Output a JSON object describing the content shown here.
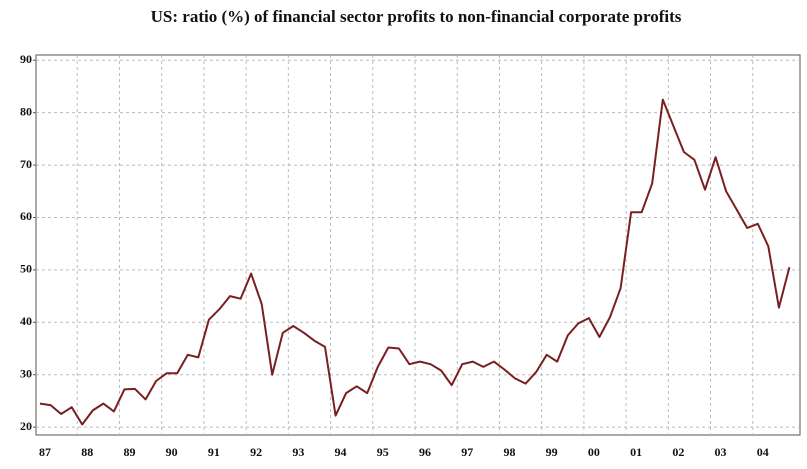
{
  "chart_data": {
    "type": "line",
    "title": "US: ratio (%) of financial sector profits to non-financial corporate profits",
    "categories": [
      "87",
      null,
      null,
      null,
      "88",
      null,
      null,
      null,
      "89",
      null,
      null,
      null,
      "90",
      null,
      null,
      null,
      "91",
      null,
      null,
      null,
      "92",
      null,
      null,
      null,
      "93",
      null,
      null,
      null,
      "94",
      null,
      null,
      null,
      "95",
      null,
      null,
      null,
      "96",
      null,
      null,
      null,
      "97",
      null,
      null,
      null,
      "98",
      null,
      null,
      null,
      "99",
      null,
      null,
      null,
      "00",
      null,
      null,
      null,
      "01",
      null,
      null,
      null,
      "02",
      null,
      null,
      null,
      "03",
      null,
      null,
      null,
      "04",
      null,
      null,
      null
    ],
    "series": [
      {
        "color": "#7a1f1f",
        "values": [
          24.5,
          24.2,
          22.5,
          23.8,
          20.5,
          23.2,
          24.5,
          23.0,
          27.2,
          27.3,
          25.3,
          28.8,
          30.3,
          30.3,
          33.8,
          33.3,
          40.5,
          42.5,
          45.0,
          44.5,
          49.3,
          43.5,
          30.0,
          38.0,
          39.3,
          38.0,
          36.5,
          35.3,
          22.2,
          26.5,
          27.8,
          26.5,
          31.5,
          35.2,
          35.0,
          32.0,
          32.5,
          32.0,
          30.8,
          28.0,
          32.0,
          32.5,
          31.5,
          32.5,
          31.0,
          29.3,
          28.3,
          30.5,
          33.8,
          32.5,
          37.5,
          39.8,
          40.8,
          37.2,
          41.0,
          46.5,
          61.0,
          61.0,
          66.5,
          82.5,
          77.5,
          72.5,
          71.0,
          65.3,
          71.5,
          65.0,
          61.5,
          58.0,
          58.8,
          54.5,
          42.8,
          50.5
        ]
      }
    ],
    "ylim": [
      18.5,
      91
    ],
    "yticks": [
      20,
      30,
      40,
      50,
      60,
      70,
      80,
      90
    ],
    "grid": true
  }
}
